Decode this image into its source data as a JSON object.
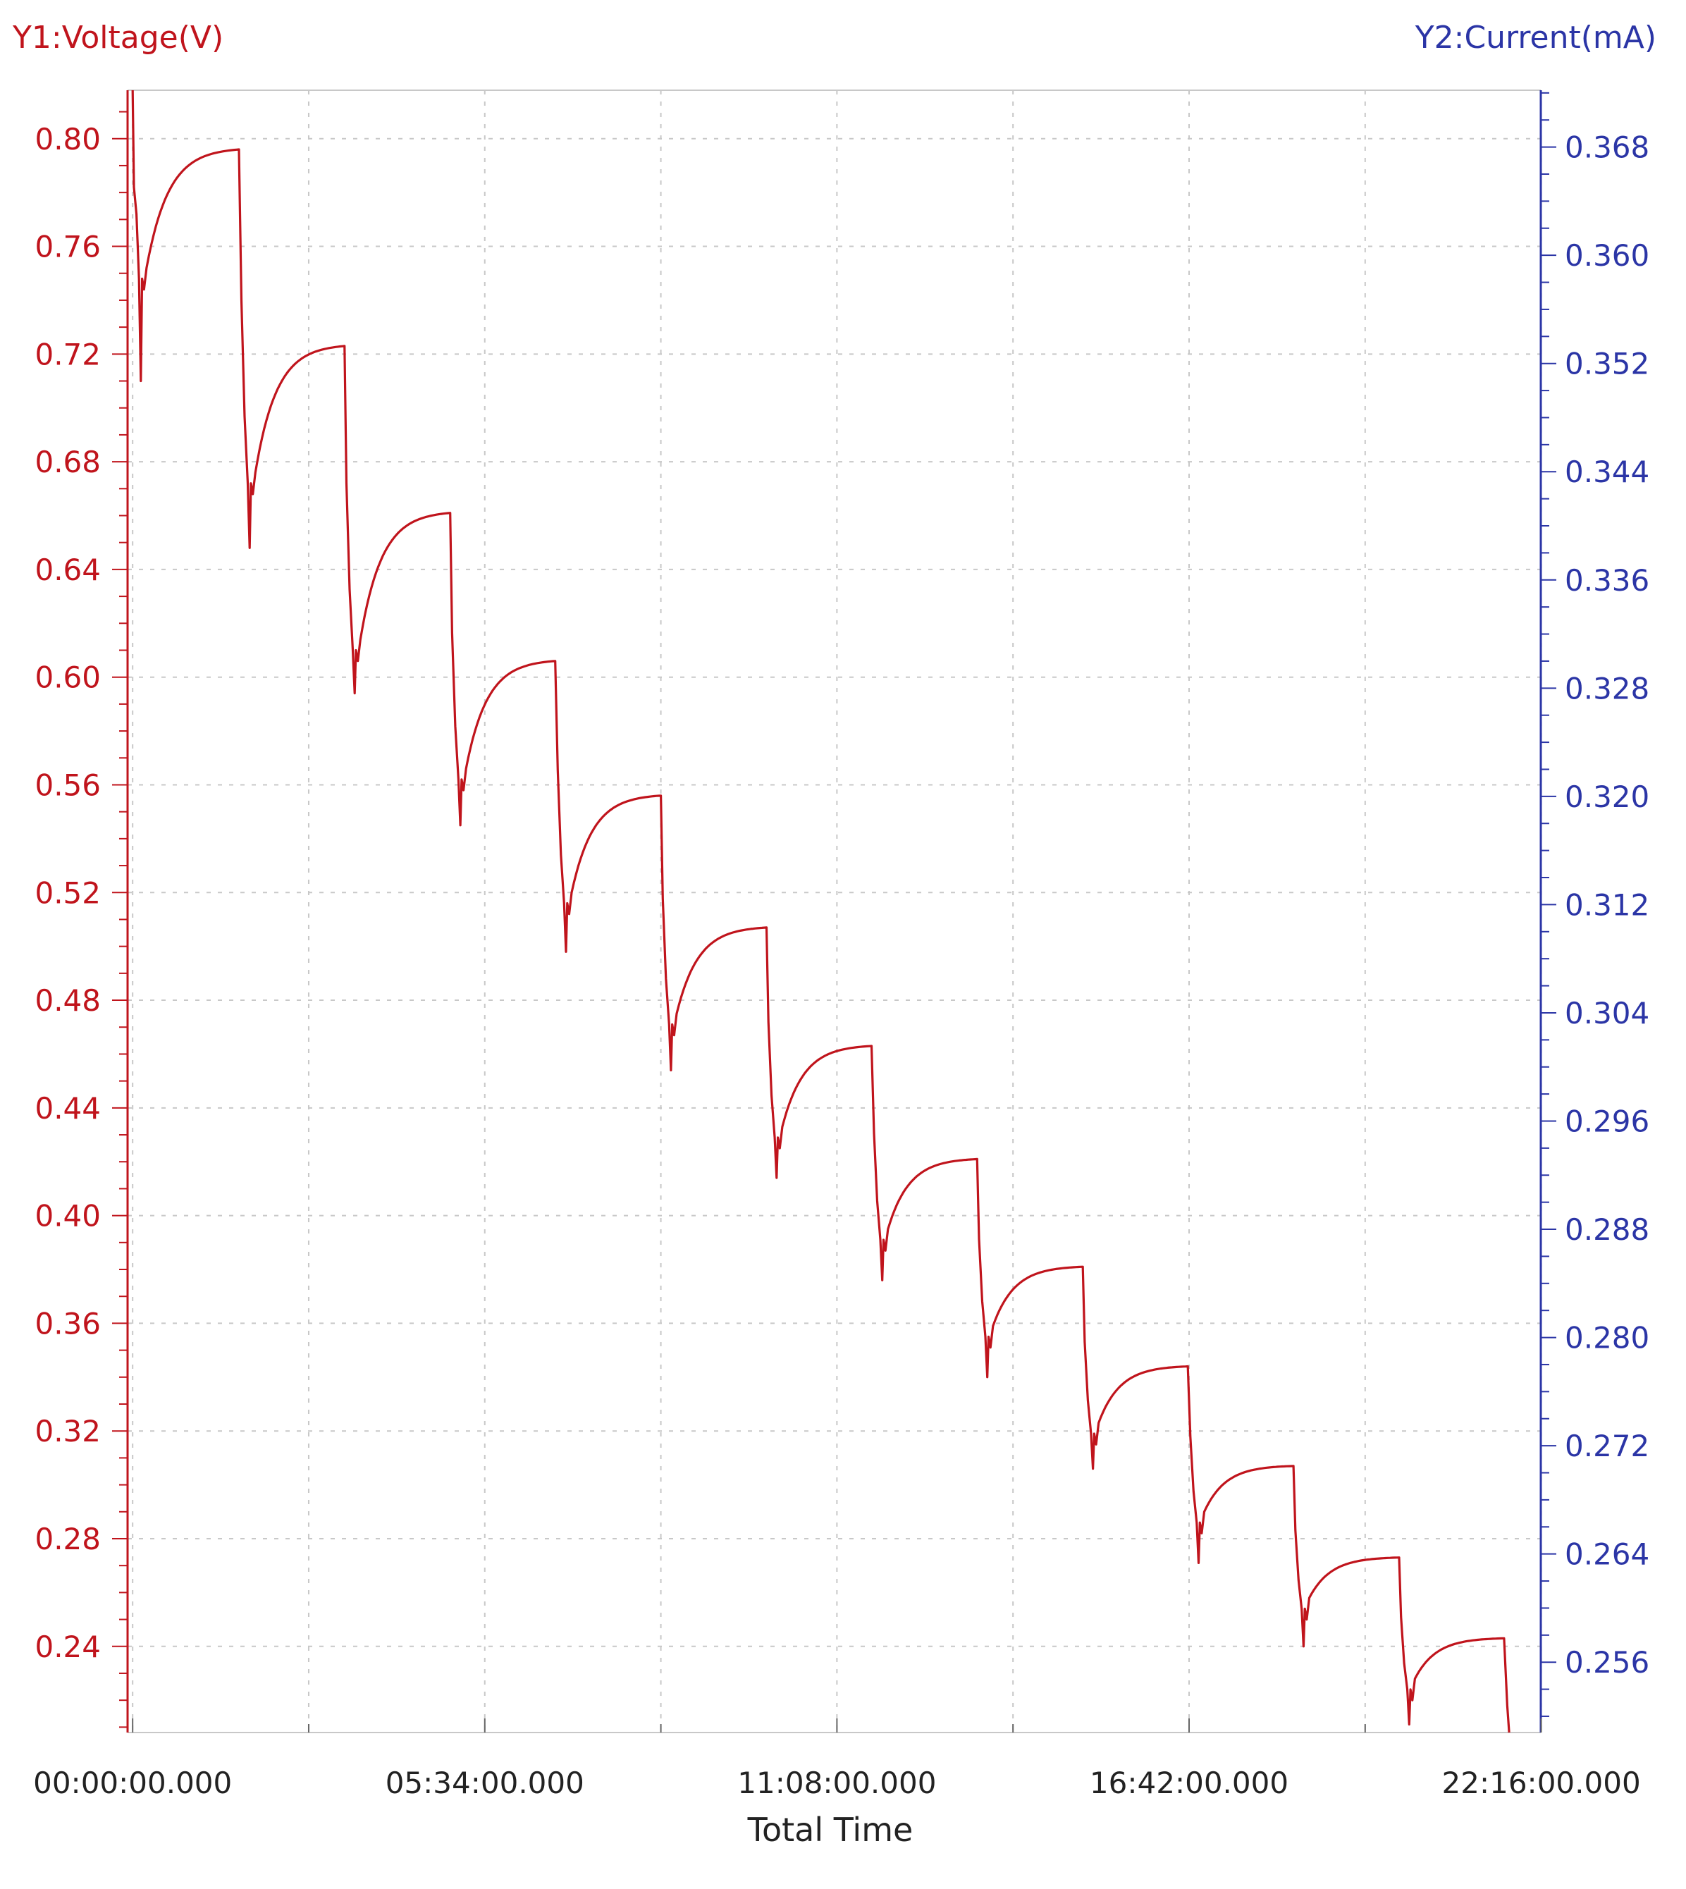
{
  "chart_data": {
    "type": "line",
    "title": "",
    "xlabel": "Total Time",
    "ylabel": "Y1:Voltage(V)",
    "y2label": "Y2:Current(mA)",
    "xlim_hours": [
      -0.08,
      22.26
    ],
    "ylim": [
      0.208,
      0.818
    ],
    "y2lim": [
      0.2508,
      0.3722
    ],
    "x_ticks": [
      {
        "hours": 0,
        "label": "00:00:00.000"
      },
      {
        "hours": 5.5667,
        "label": "05:34:00.000"
      },
      {
        "hours": 11.1333,
        "label": "11:08:00.000"
      },
      {
        "hours": 16.7,
        "label": "16:42:00.000"
      },
      {
        "hours": 22.2667,
        "label": "22:16:00.000"
      }
    ],
    "y_ticks": [
      "0.80",
      "0.76",
      "0.72",
      "0.68",
      "0.64",
      "0.60",
      "0.56",
      "0.52",
      "0.48",
      "0.44",
      "0.40",
      "0.36",
      "0.32",
      "0.28",
      "0.24"
    ],
    "y_tick_values": [
      0.8,
      0.76,
      0.72,
      0.68,
      0.64,
      0.6,
      0.56,
      0.52,
      0.48,
      0.44,
      0.4,
      0.36,
      0.32,
      0.28,
      0.24
    ],
    "y2_ticks": [
      "0.368",
      "0.360",
      "0.352",
      "0.344",
      "0.336",
      "0.328",
      "0.320",
      "0.312",
      "0.304",
      "0.296",
      "0.288",
      "0.280",
      "0.272",
      "0.264",
      "0.256"
    ],
    "y2_tick_values": [
      0.368,
      0.36,
      0.352,
      0.344,
      0.336,
      0.328,
      0.32,
      0.312,
      0.304,
      0.296,
      0.288,
      0.28,
      0.272,
      0.264,
      0.256
    ],
    "grid": true,
    "series": [
      {
        "name": "",
        "axis": "y1",
        "color": "#c0141c",
        "cycles": [
          {
            "start_h": 0.0,
            "min": 0.71,
            "rest_start": 0.748,
            "peak": 0.796,
            "end_h": 1.68
          },
          {
            "start_h": 1.72,
            "min": 0.648,
            "rest_start": 0.672,
            "peak": 0.723,
            "end_h": 3.35
          },
          {
            "start_h": 3.38,
            "min": 0.594,
            "rest_start": 0.61,
            "peak": 0.661,
            "end_h": 5.02
          },
          {
            "start_h": 5.05,
            "min": 0.545,
            "rest_start": 0.562,
            "peak": 0.606,
            "end_h": 6.68
          },
          {
            "start_h": 6.72,
            "min": 0.498,
            "rest_start": 0.516,
            "peak": 0.556,
            "end_h": 8.35
          },
          {
            "start_h": 8.38,
            "min": 0.454,
            "rest_start": 0.471,
            "peak": 0.507,
            "end_h": 10.02
          },
          {
            "start_h": 10.05,
            "min": 0.414,
            "rest_start": 0.429,
            "peak": 0.463,
            "end_h": 11.68
          },
          {
            "start_h": 11.72,
            "min": 0.376,
            "rest_start": 0.391,
            "peak": 0.421,
            "end_h": 13.35
          },
          {
            "start_h": 13.38,
            "min": 0.34,
            "rest_start": 0.355,
            "peak": 0.381,
            "end_h": 15.02
          },
          {
            "start_h": 15.05,
            "min": 0.306,
            "rest_start": 0.319,
            "peak": 0.344,
            "end_h": 16.68
          },
          {
            "start_h": 16.72,
            "min": 0.271,
            "rest_start": 0.286,
            "peak": 0.307,
            "end_h": 18.35
          },
          {
            "start_h": 18.38,
            "min": 0.24,
            "rest_start": 0.254,
            "peak": 0.273,
            "end_h": 20.02
          },
          {
            "start_h": 20.05,
            "min": 0.211,
            "rest_start": 0.224,
            "peak": 0.243,
            "end_h": 21.68
          }
        ],
        "initial_value": 0.818,
        "final_value": 0.208
      }
    ]
  },
  "colors": {
    "y1": "#c0141c",
    "y2": "#2b35a6",
    "grid": "#c8c8c8",
    "axis_frame": "#c8c8c8",
    "text": "#222222"
  }
}
